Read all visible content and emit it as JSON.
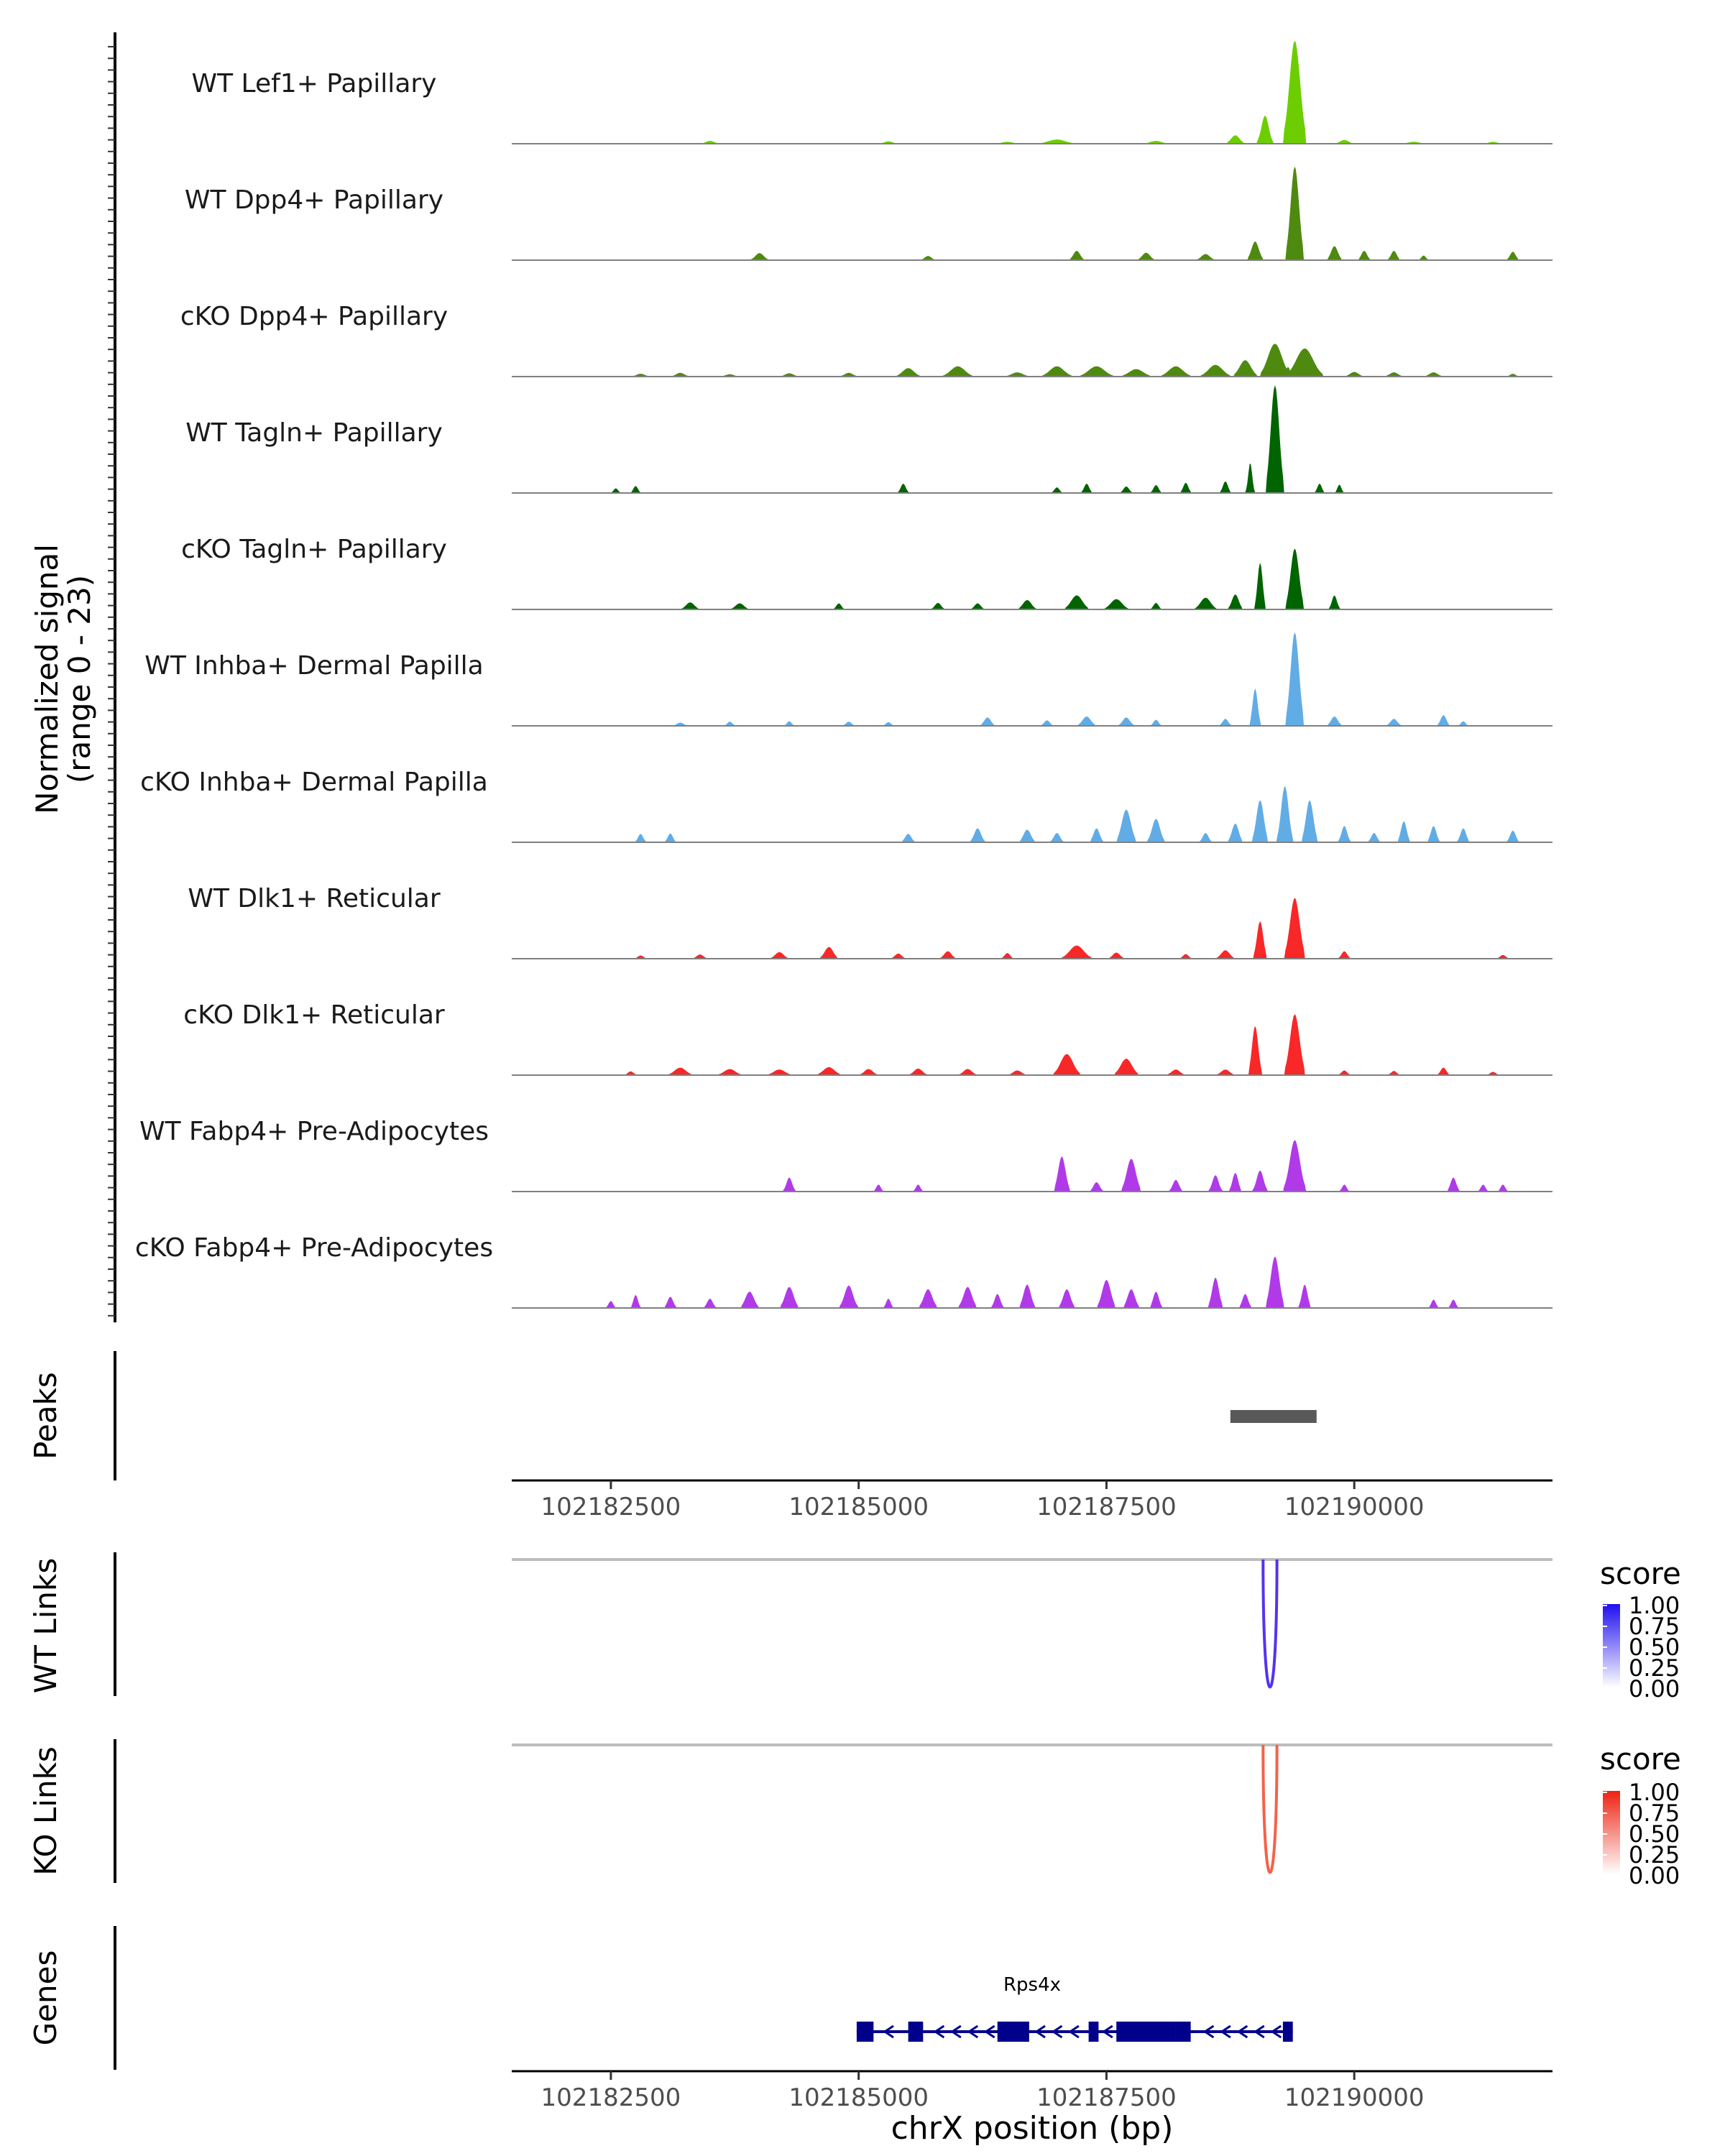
{
  "chart_data": {
    "type": "area",
    "title": "",
    "region": {
      "chromosome": "chrX",
      "start": 102181500,
      "end": 102192000
    },
    "xlabel": "chrX position (bp)",
    "x_ticks": [
      102182500,
      102185000,
      102187500,
      102190000
    ],
    "x_tick_labels": [
      "102182500",
      "102185000",
      "102187500",
      "102190000"
    ],
    "coverage": {
      "ylabel": "Normalized signal",
      "ylabel_range": "(range 0 - 23)",
      "ylim": [
        0,
        23
      ],
      "tracks": [
        {
          "name": "WT Lef1+ Papillary",
          "color": "#6cce00",
          "peaks": [
            [
              102183500,
              0.6,
              150
            ],
            [
              102185300,
              0.5,
              150
            ],
            [
              102186500,
              0.4,
              200
            ],
            [
              102187000,
              0.9,
              300
            ],
            [
              102188000,
              0.6,
              200
            ],
            [
              102188800,
              1.8,
              150
            ],
            [
              102189100,
              6,
              130
            ],
            [
              102189400,
              22,
              190
            ],
            [
              102189900,
              0.8,
              150
            ],
            [
              102190600,
              0.4,
              200
            ],
            [
              102191400,
              0.4,
              150
            ]
          ]
        },
        {
          "name": "WT Dpp4+ Papillary",
          "color": "#4f8a10",
          "peaks": [
            [
              102184000,
              1.5,
              150
            ],
            [
              102185700,
              0.9,
              120
            ],
            [
              102187200,
              2,
              120
            ],
            [
              102187900,
              1.6,
              140
            ],
            [
              102188500,
              1.3,
              150
            ],
            [
              102189000,
              4,
              130
            ],
            [
              102189400,
              20,
              150
            ],
            [
              102189800,
              3,
              120
            ],
            [
              102190100,
              2,
              100
            ],
            [
              102190400,
              2,
              100
            ],
            [
              102190700,
              1,
              80
            ],
            [
              102191600,
              1.8,
              100
            ]
          ]
        },
        {
          "name": "cKO Dpp4+ Papillary",
          "color": "#4f8a10",
          "peaks": [
            [
              102182800,
              0.6,
              150
            ],
            [
              102183200,
              0.8,
              150
            ],
            [
              102183700,
              0.5,
              150
            ],
            [
              102184300,
              0.7,
              150
            ],
            [
              102184900,
              0.8,
              150
            ],
            [
              102185500,
              1.8,
              200
            ],
            [
              102186000,
              2.2,
              250
            ],
            [
              102186600,
              0.9,
              200
            ],
            [
              102187000,
              2.2,
              250
            ],
            [
              102187400,
              2.2,
              280
            ],
            [
              102187800,
              1.6,
              250
            ],
            [
              102188200,
              2.2,
              250
            ],
            [
              102188600,
              2.5,
              250
            ],
            [
              102188900,
              3.5,
              200
            ],
            [
              102189200,
              7,
              250
            ],
            [
              102189500,
              6,
              300
            ],
            [
              102190000,
              1,
              150
            ],
            [
              102190400,
              0.9,
              150
            ],
            [
              102190800,
              0.9,
              150
            ],
            [
              102191600,
              0.6,
              100
            ]
          ]
        },
        {
          "name": "WT Tagln+ Papillary",
          "color": "#006400",
          "peaks": [
            [
              102182550,
              1,
              80
            ],
            [
              102182750,
              1.5,
              80
            ],
            [
              102185450,
              2,
              90
            ],
            [
              102187000,
              1.2,
              90
            ],
            [
              102187300,
              2,
              90
            ],
            [
              102187700,
              1.4,
              100
            ],
            [
              102188000,
              1.7,
              90
            ],
            [
              102188300,
              2.2,
              90
            ],
            [
              102188700,
              2.5,
              90
            ],
            [
              102188950,
              6.5,
              70
            ],
            [
              102189200,
              23,
              150
            ],
            [
              102189650,
              2,
              80
            ],
            [
              102189850,
              1.8,
              70
            ]
          ]
        },
        {
          "name": "cKO Tagln+ Papillary",
          "color": "#006400",
          "peaks": [
            [
              102183300,
              1.5,
              150
            ],
            [
              102183800,
              1.3,
              150
            ],
            [
              102184800,
              1.3,
              90
            ],
            [
              102185800,
              1.4,
              110
            ],
            [
              102186200,
              1.3,
              110
            ],
            [
              102186700,
              2,
              150
            ],
            [
              102187200,
              3,
              200
            ],
            [
              102187600,
              2.2,
              200
            ],
            [
              102188000,
              1.4,
              90
            ],
            [
              102188500,
              2.5,
              180
            ],
            [
              102188800,
              3.2,
              120
            ],
            [
              102189050,
              10,
              90
            ],
            [
              102189400,
              13,
              150
            ],
            [
              102189800,
              3,
              90
            ]
          ]
        },
        {
          "name": "WT Inhba+ Dermal Papilla",
          "color": "#62ace6",
          "peaks": [
            [
              102183200,
              0.7,
              120
            ],
            [
              102183700,
              0.9,
              90
            ],
            [
              102184300,
              1,
              80
            ],
            [
              102184900,
              0.9,
              100
            ],
            [
              102185300,
              0.8,
              90
            ],
            [
              102186300,
              1.8,
              120
            ],
            [
              102186900,
              1.2,
              100
            ],
            [
              102187300,
              2,
              150
            ],
            [
              102187700,
              1.8,
              130
            ],
            [
              102188000,
              1.3,
              90
            ],
            [
              102188700,
              1.5,
              100
            ],
            [
              102189000,
              8,
              90
            ],
            [
              102189400,
              20,
              150
            ],
            [
              102189800,
              2,
              120
            ],
            [
              102190400,
              1.5,
              120
            ],
            [
              102190900,
              2.3,
              100
            ],
            [
              102191100,
              1,
              80
            ]
          ]
        },
        {
          "name": "cKO Inhba+ Dermal Papilla",
          "color": "#62ace6",
          "peaks": [
            [
              102182800,
              1.8,
              90
            ],
            [
              102183100,
              1.9,
              90
            ],
            [
              102185500,
              1.8,
              110
            ],
            [
              102186200,
              3,
              120
            ],
            [
              102186700,
              2.7,
              130
            ],
            [
              102187000,
              2,
              110
            ],
            [
              102187400,
              3,
              110
            ],
            [
              102187700,
              7,
              160
            ],
            [
              102188000,
              5,
              140
            ],
            [
              102188500,
              2,
              100
            ],
            [
              102188800,
              4,
              120
            ],
            [
              102189050,
              9,
              130
            ],
            [
              102189300,
              12,
              130
            ],
            [
              102189550,
              9,
              130
            ],
            [
              102189900,
              3.5,
              100
            ],
            [
              102190200,
              2,
              100
            ],
            [
              102190500,
              4.5,
              100
            ],
            [
              102190800,
              3.5,
              100
            ],
            [
              102191100,
              3,
              100
            ],
            [
              102191600,
              2.5,
              100
            ]
          ]
        },
        {
          "name": "WT Dlk1+ Reticular",
          "color": "#f82728",
          "peaks": [
            [
              102182800,
              0.7,
              100
            ],
            [
              102183400,
              0.9,
              120
            ],
            [
              102184200,
              1.4,
              150
            ],
            [
              102184700,
              2.5,
              150
            ],
            [
              102185400,
              1.1,
              120
            ],
            [
              102185900,
              1.6,
              130
            ],
            [
              102186500,
              1.2,
              100
            ],
            [
              102187200,
              2.8,
              250
            ],
            [
              102187600,
              1.3,
              130
            ],
            [
              102188300,
              1,
              100
            ],
            [
              102188700,
              1.8,
              150
            ],
            [
              102189050,
              8,
              110
            ],
            [
              102189400,
              13,
              170
            ],
            [
              102189900,
              1.6,
              100
            ],
            [
              102191500,
              0.8,
              100
            ]
          ]
        },
        {
          "name": "cKO Dlk1+ Reticular",
          "color": "#f82728",
          "peaks": [
            [
              102182700,
              0.8,
              100
            ],
            [
              102183200,
              1.6,
              200
            ],
            [
              102183700,
              1.3,
              200
            ],
            [
              102184200,
              1.2,
              200
            ],
            [
              102184700,
              1.7,
              200
            ],
            [
              102185100,
              1.3,
              150
            ],
            [
              102185600,
              1.4,
              150
            ],
            [
              102186100,
              1.3,
              150
            ],
            [
              102186600,
              1,
              150
            ],
            [
              102187100,
              4.5,
              220
            ],
            [
              102187700,
              3.5,
              200
            ],
            [
              102188200,
              1.2,
              150
            ],
            [
              102188700,
              1.2,
              150
            ],
            [
              102189000,
              10.5,
              110
            ],
            [
              102189400,
              13,
              170
            ],
            [
              102189900,
              1,
              100
            ],
            [
              102190400,
              0.9,
              100
            ],
            [
              102190900,
              1.6,
              100
            ],
            [
              102191400,
              0.7,
              100
            ]
          ]
        },
        {
          "name": "WT Fabp4+ Pre-Adipocytes",
          "color": "#b03ae8",
          "peaks": [
            [
              102184300,
              3,
              100
            ],
            [
              102185200,
              1.5,
              80
            ],
            [
              102185600,
              1.5,
              80
            ],
            [
              102187050,
              7.5,
              130
            ],
            [
              102187400,
              2,
              110
            ],
            [
              102187750,
              7,
              160
            ],
            [
              102188200,
              2.5,
              110
            ],
            [
              102188600,
              3.5,
              110
            ],
            [
              102188800,
              4,
              100
            ],
            [
              102189050,
              4.5,
              120
            ],
            [
              102189400,
              11,
              180
            ],
            [
              102189900,
              1.5,
              80
            ],
            [
              102191000,
              3,
              100
            ],
            [
              102191300,
              1.5,
              80
            ],
            [
              102191500,
              1.5,
              80
            ]
          ]
        },
        {
          "name": "cKO Fabp4+ Pre-Adipocytes",
          "color": "#b03ae8",
          "peaks": [
            [
              102182500,
              1.5,
              80
            ],
            [
              102182750,
              2.8,
              80
            ],
            [
              102183100,
              2.4,
              100
            ],
            [
              102183500,
              2,
              100
            ],
            [
              102183900,
              3.5,
              150
            ],
            [
              102184300,
              4.5,
              150
            ],
            [
              102184900,
              4.8,
              150
            ],
            [
              102185300,
              2,
              80
            ],
            [
              102185700,
              4,
              150
            ],
            [
              102186100,
              4.5,
              150
            ],
            [
              102186400,
              3,
              100
            ],
            [
              102186700,
              5,
              130
            ],
            [
              102187100,
              4,
              130
            ],
            [
              102187500,
              6,
              150
            ],
            [
              102187750,
              4,
              130
            ],
            [
              102188000,
              3.5,
              100
            ],
            [
              102188600,
              6.5,
              120
            ],
            [
              102188900,
              3,
              100
            ],
            [
              102189200,
              11,
              150
            ],
            [
              102189500,
              5,
              100
            ],
            [
              102190800,
              1.8,
              80
            ],
            [
              102191000,
              1.8,
              80
            ]
          ]
        }
      ]
    },
    "peaks": {
      "label": "Peaks",
      "regions": [
        [
          102188750,
          102189620
        ]
      ]
    },
    "links": [
      {
        "label": "WT Links",
        "color": "#5533ee",
        "anchors": [
          102189080,
          102189220
        ],
        "legend_title": "score",
        "legend_ticks": [
          "1.00",
          "0.75",
          "0.50",
          "0.25",
          "0.00"
        ],
        "gradient_low": "#ffffff",
        "gradient_high": "#1f0ff0"
      },
      {
        "label": "KO Links",
        "color": "#f4624a",
        "anchors": [
          102189080,
          102189220
        ],
        "legend_title": "score",
        "legend_ticks": [
          "1.00",
          "0.75",
          "0.50",
          "0.25",
          "0.00"
        ],
        "gradient_low": "#ffffff",
        "gradient_high": "#ee2211"
      }
    ],
    "genes": {
      "label": "Genes",
      "gene_name": "Rps4x",
      "color": "#00008b",
      "strand": "-",
      "span": [
        102184980,
        102189380
      ],
      "exons": [
        [
          102184980,
          102185150
        ],
        [
          102185500,
          102185650
        ],
        [
          102186400,
          102186720
        ],
        [
          102187320,
          102187420
        ],
        [
          102187600,
          102188200
        ],
        [
          102188200,
          102188350
        ],
        [
          102189280,
          102189380
        ]
      ]
    }
  }
}
